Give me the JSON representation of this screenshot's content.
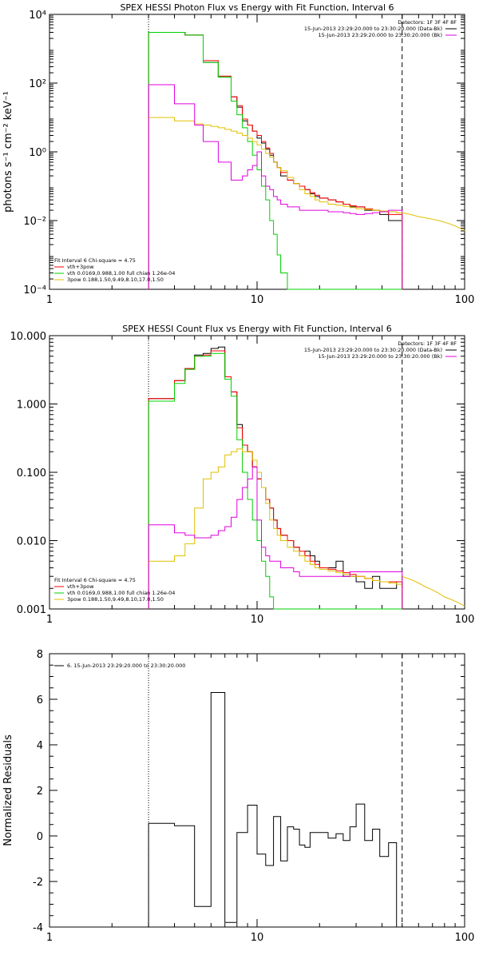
{
  "colors": {
    "black": "#000000",
    "red": "#ff0000",
    "green": "#00d000",
    "magenta": "#e000e0",
    "yellow": "#e0c000",
    "white": "#ffffff"
  },
  "chart_data": [
    {
      "type": "line",
      "title": "SPEX HESSI Photon Flux vs Energy with Fit Function, Interval 6",
      "ylabel": "photons s⁻¹ cm⁻² keV⁻¹",
      "xlabel": "",
      "log_x": true,
      "log_y": true,
      "xlim": [
        1,
        100
      ],
      "ylim": [
        0.0001,
        10000
      ],
      "x_ticks": [
        "1",
        "10",
        "100"
      ],
      "y_ticks": [
        "10⁻⁴",
        "10⁻²",
        "10⁰",
        "10²",
        "10⁴"
      ],
      "legend_right": {
        "header": "Detectors: 1F 3F 4F 8F",
        "entries": [
          {
            "text": "15-Jun-2013 23:29:20.000 to 23:30:20.000 (Data-Bk)",
            "color": "black"
          },
          {
            "text": "15-Jun-2013 23:29:20.000 to 23:30:20.000 (Bk)",
            "color": "magenta"
          }
        ]
      },
      "legend_left": {
        "header": "Fit Interval 6   Chi-square = 4.75",
        "entries": [
          {
            "text": "vth+3pow",
            "color": "red"
          },
          {
            "text": "vth 0.0169,0.988,1.00  full chian 1.26e-04",
            "color": "green"
          },
          {
            "text": "3pow 0.188,1.50,9.49,8.10,17.0,1.50",
            "color": "yellow"
          }
        ]
      },
      "edges": [
        3,
        3.5,
        4,
        4.5,
        5,
        5.5,
        6,
        6.5,
        7,
        7.5,
        8,
        8.5,
        9,
        9.5,
        10,
        10.5,
        11,
        11.5,
        12,
        12.5,
        13,
        14,
        15,
        16,
        17,
        18,
        19,
        20,
        22,
        24,
        26,
        28,
        30,
        33,
        36,
        39,
        43,
        47,
        50
      ],
      "series": [
        {
          "name": "Data-Bk",
          "color": "black",
          "values": [
            3000,
            3000,
            3000,
            2500,
            2500,
            400,
            400,
            150,
            150,
            40,
            20,
            8,
            6,
            4,
            2.5,
            1.8,
            1.2,
            0.8,
            0.5,
            0.35,
            0.2,
            0.15,
            0.12,
            0.1,
            0.08,
            0.06,
            0.05,
            0.045,
            0.04,
            0.035,
            0.03,
            0.025,
            0.025,
            0.02,
            0.02,
            0.015,
            0.01,
            0.01
          ]
        },
        {
          "name": "vth+3pow",
          "color": "red",
          "values": [
            3000,
            3000,
            3000,
            2500,
            2500,
            450,
            450,
            160,
            160,
            40,
            22,
            9,
            6,
            4,
            3,
            2,
            1.3,
            0.9,
            0.5,
            0.35,
            0.25,
            0.15,
            0.12,
            0.1,
            0.08,
            0.065,
            0.055,
            0.045,
            0.04,
            0.035,
            0.03,
            0.027,
            0.025,
            0.022,
            0.02,
            0.018,
            0.015,
            0.015
          ]
        },
        {
          "name": "vth",
          "color": "green",
          "values": [
            3000,
            3000,
            3000,
            2500,
            2500,
            400,
            400,
            150,
            150,
            30,
            12,
            5,
            2,
            0.8,
            0.3,
            0.1,
            0.04,
            0.01,
            0.004,
            0.001,
            0.0003,
            0.0001,
            0.0001,
            0.0001,
            0.0001,
            0.0001,
            0.0001,
            0.0001,
            0.0001,
            0.0001,
            0.0001,
            0.0001,
            0.0001,
            0.0001,
            0.0001,
            0.0001,
            0.0001,
            0.0001
          ]
        },
        {
          "name": "3pow",
          "color": "yellow",
          "values": [
            10,
            10,
            8,
            8,
            6.5,
            6,
            5.5,
            5,
            4.5,
            4,
            3.5,
            3,
            2.5,
            2,
            1.6,
            1.2,
            0.9,
            0.7,
            0.5,
            0.35,
            0.28,
            0.18,
            0.12,
            0.08,
            0.06,
            0.05,
            0.04,
            0.035,
            0.03,
            0.028,
            0.026,
            0.024,
            0.022,
            0.021,
            0.02,
            0.019,
            0.018,
            0.017
          ]
        },
        {
          "name": "Bk",
          "color": "magenta",
          "values": [
            90,
            90,
            25,
            25,
            6,
            2,
            2,
            0.5,
            0.5,
            0.15,
            0.15,
            0.2,
            0.3,
            0.4,
            1,
            0.2,
            0.1,
            0.08,
            0.05,
            0.04,
            0.03,
            0.025,
            0.025,
            0.02,
            0.02,
            0.02,
            0.02,
            0.02,
            0.018,
            0.018,
            0.017,
            0.016,
            0.015,
            0.016,
            0.017,
            0.018,
            0.02,
            0.02
          ]
        }
      ],
      "tail": {
        "color": "yellow",
        "x": [
          50,
          55,
          60,
          65,
          70,
          75,
          80,
          85,
          90,
          95,
          100
        ],
        "values": [
          0.017,
          0.015,
          0.013,
          0.012,
          0.011,
          0.01,
          0.009,
          0.008,
          0.007,
          0.006,
          0.005
        ]
      }
    },
    {
      "type": "line",
      "title": "SPEX HESSI Count Flux vs Energy with Fit Function, Interval 6",
      "ylabel": "",
      "xlabel": "",
      "log_x": true,
      "log_y": true,
      "xlim": [
        1,
        100
      ],
      "ylim": [
        0.001,
        10
      ],
      "x_ticks": [
        "1",
        "10",
        "100"
      ],
      "y_ticks": [
        "0.001",
        "0.010",
        "0.100",
        "1.000",
        "10.000"
      ],
      "legend_right": {
        "header": "Detectors: 1F 3F 4F 8F",
        "entries": [
          {
            "text": "15-Jun-2013 23:29:20.000 to 23:30:20.000 (Data-Bk)",
            "color": "black"
          },
          {
            "text": "15-Jun-2013 23:29:20.000 to 23:30:20.000 (Bk)",
            "color": "magenta"
          }
        ]
      },
      "legend_left": {
        "header": "Fit Interval 6   Chi-square = 4.75",
        "entries": [
          {
            "text": "vth+3pow",
            "color": "red"
          },
          {
            "text": "vth 0.0169,0.988,1.00  full chian 1.26e-04",
            "color": "green"
          },
          {
            "text": "3pow 0.188,1.50,9.49,8.10,17.0,1.50",
            "color": "yellow"
          }
        ]
      },
      "edges": [
        3,
        3.5,
        4,
        4.5,
        5,
        5.5,
        6,
        6.5,
        7,
        7.5,
        8,
        8.5,
        9,
        9.5,
        10,
        10.5,
        11,
        11.5,
        12,
        12.5,
        13,
        14,
        15,
        16,
        17,
        18,
        19,
        20,
        22,
        24,
        26,
        28,
        30,
        33,
        36,
        39,
        43,
        47,
        50
      ],
      "series": [
        {
          "name": "Data-Bk",
          "color": "black",
          "values": [
            1.2,
            1.2,
            2.2,
            3.3,
            5.2,
            5.5,
            6.5,
            6.8,
            2.5,
            1.5,
            0.5,
            0.25,
            0.2,
            0.12,
            0.08,
            0.06,
            0.04,
            0.03,
            0.02,
            0.015,
            0.012,
            0.01,
            0.008,
            0.006,
            0.007,
            0.006,
            0.005,
            0.004,
            0.004,
            0.005,
            0.003,
            0.003,
            0.0025,
            0.002,
            0.003,
            0.002,
            0.002,
            0.0025
          ]
        },
        {
          "name": "vth+3pow",
          "color": "red",
          "values": [
            1.2,
            1.2,
            2.2,
            3.3,
            5.0,
            5.2,
            6.0,
            6.0,
            2.5,
            1.5,
            0.45,
            0.25,
            0.2,
            0.12,
            0.08,
            0.06,
            0.04,
            0.03,
            0.02,
            0.015,
            0.012,
            0.01,
            0.008,
            0.007,
            0.006,
            0.005,
            0.0045,
            0.004,
            0.0038,
            0.0036,
            0.0034,
            0.0032,
            0.003,
            0.0028,
            0.0026,
            0.0025,
            0.0025,
            0.0025
          ]
        },
        {
          "name": "vth",
          "color": "green",
          "values": [
            1.1,
            1.1,
            2.0,
            3.2,
            5.0,
            5.0,
            5.5,
            5.5,
            2.3,
            1.3,
            0.3,
            0.1,
            0.04,
            0.02,
            0.01,
            0.005,
            0.003,
            0.0015,
            0.001,
            0.001,
            0.001,
            0.001,
            0.001,
            0.001,
            0.001,
            0.001,
            0.001,
            0.001,
            0.001,
            0.001,
            0.001,
            0.001,
            0.001,
            0.001,
            0.001,
            0.001,
            0.001,
            0.001
          ]
        },
        {
          "name": "3pow",
          "color": "yellow",
          "values": [
            0.005,
            0.005,
            0.006,
            0.009,
            0.03,
            0.08,
            0.1,
            0.12,
            0.18,
            0.2,
            0.22,
            0.2,
            0.2,
            0.15,
            0.1,
            0.06,
            0.035,
            0.02,
            0.015,
            0.012,
            0.01,
            0.008,
            0.007,
            0.006,
            0.005,
            0.0045,
            0.004,
            0.0038,
            0.0036,
            0.0034,
            0.0032,
            0.003,
            0.003,
            0.0028,
            0.0026,
            0.0025,
            0.0024,
            0.0023
          ]
        },
        {
          "name": "Bk",
          "color": "magenta",
          "values": [
            0.017,
            0.017,
            0.013,
            0.012,
            0.011,
            0.011,
            0.012,
            0.014,
            0.016,
            0.022,
            0.04,
            0.06,
            0.08,
            0.12,
            0.02,
            0.008,
            0.006,
            0.005,
            0.005,
            0.005,
            0.004,
            0.004,
            0.0035,
            0.003,
            0.003,
            0.003,
            0.003,
            0.003,
            0.003,
            0.003,
            0.003,
            0.0035,
            0.0035,
            0.0035,
            0.0035,
            0.0035,
            0.0035,
            0.0035
          ]
        }
      ],
      "tail": {
        "color": "yellow",
        "x": [
          50,
          55,
          60,
          65,
          70,
          75,
          80,
          85,
          90,
          95,
          100
        ],
        "values": [
          0.003,
          0.0027,
          0.0024,
          0.0021,
          0.0019,
          0.0017,
          0.0015,
          0.0014,
          0.0013,
          0.0012,
          0.0011
        ]
      }
    },
    {
      "type": "line",
      "title": "",
      "ylabel": "Normalized Residuals",
      "xlabel": "",
      "log_x": true,
      "log_y": false,
      "xlim": [
        1,
        100
      ],
      "ylim": [
        -4,
        8
      ],
      "x_ticks": [
        "1",
        "10",
        "100"
      ],
      "y_ticks": [
        "-4",
        "-2",
        "0",
        "2",
        "4",
        "6",
        "8"
      ],
      "legend_left": {
        "header": "",
        "entries": [
          {
            "text": "6. 15-Jun-2013 23:29:20.000 to 23:30:20.000",
            "color": "black"
          }
        ]
      },
      "edges": [
        3,
        4,
        5,
        6,
        7,
        8,
        9,
        10,
        11,
        12,
        13,
        14,
        15,
        16,
        17,
        18,
        20,
        22,
        24,
        26,
        28,
        30,
        33,
        36,
        39,
        43,
        47,
        50
      ],
      "series": [
        {
          "name": "6",
          "color": "black",
          "values": [
            0.55,
            0.45,
            -3.1,
            6.3,
            -3.8,
            0.15,
            1.35,
            -0.8,
            -1.3,
            0.85,
            -1.1,
            0.4,
            0.3,
            -0.4,
            -0.5,
            0.15,
            0.15,
            -0.1,
            0.1,
            -0.2,
            0.4,
            1.4,
            -0.2,
            0.3,
            -0.9,
            -0.3,
            -4.0
          ]
        }
      ]
    }
  ]
}
